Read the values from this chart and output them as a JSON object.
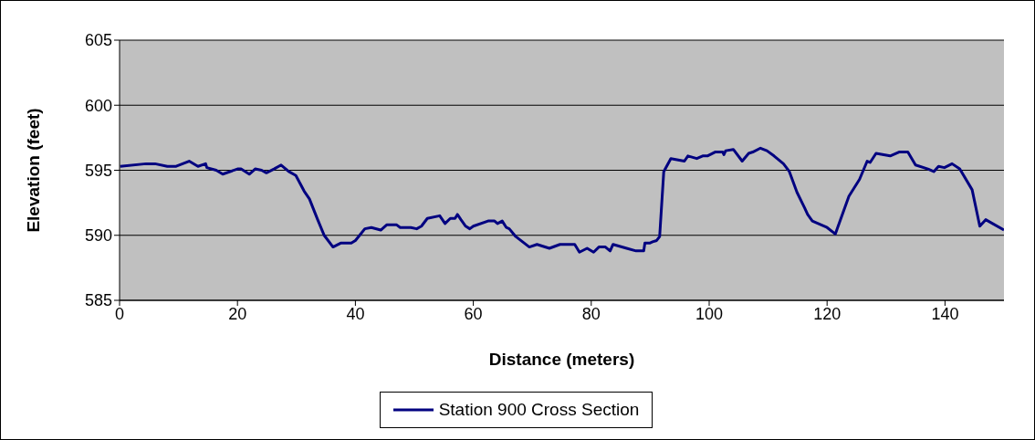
{
  "chart_data": {
    "type": "line",
    "xlabel": "Distance (meters)",
    "ylabel": "Elevation (feet)",
    "xlim": [
      0,
      150
    ],
    "xticks": [
      0,
      20,
      40,
      60,
      80,
      100,
      120,
      140
    ],
    "ylim": [
      585,
      605
    ],
    "yticks": [
      585,
      590,
      595,
      600,
      605
    ],
    "grid": "y",
    "legend": "bottom",
    "marker": "none",
    "line_style": "solid",
    "series": [
      {
        "name": "Station 900 Cross Section",
        "color": "#000080",
        "x": [
          0.1,
          4.5,
          6,
          8.1,
          9.6,
          11.8,
          13.3,
          14.6,
          14.8,
          16.4,
          17.5,
          20,
          20.6,
          22,
          23,
          24.1,
          24.9,
          26.2,
          27.4,
          28.7,
          29.9,
          31.3,
          32.2,
          33.6,
          34.7,
          36.2,
          37.5,
          39.3,
          40,
          41.6,
          42.7,
          44.3,
          45.3,
          47,
          47.6,
          49.4,
          50.4,
          51.2,
          52.2,
          54.3,
          55.2,
          56.1,
          56.9,
          57.3,
          57.9,
          58.7,
          59.4,
          60,
          62.5,
          63.6,
          64.1,
          64.9,
          65.6,
          66.1,
          67.2,
          69.5,
          70.8,
          72.9,
          74.7,
          77.2,
          78,
          79.3,
          80.4,
          81.3,
          82.4,
          83.2,
          83.7,
          86,
          87.6,
          88.9,
          89.1,
          89.9,
          90.4,
          91.1,
          91.6,
          92.3,
          93.5,
          95.8,
          96.4,
          97.9,
          98.9,
          99.7,
          101,
          102.3,
          102.5,
          102.8,
          104.1,
          105.6,
          106.7,
          107.4,
          108.7,
          109.8,
          111,
          112.6,
          113.6,
          114.9,
          116.2,
          116.7,
          117.5,
          120,
          121.4,
          123.7,
          125.5,
          126.8,
          127.3,
          128.3,
          130.7,
          132.2,
          133.7,
          135,
          137.1,
          138.1,
          138.9,
          139.9,
          141.2,
          142.5,
          144.6,
          145.9,
          146.9,
          150
        ],
        "values": [
          595.3,
          595.5,
          595.5,
          595.3,
          595.3,
          595.7,
          595.3,
          595.5,
          595.2,
          595.0,
          594.7,
          595.1,
          595.1,
          594.7,
          595.1,
          595.0,
          594.8,
          595.1,
          595.4,
          594.9,
          594.6,
          593.4,
          592.8,
          591.2,
          590.0,
          589.1,
          589.4,
          589.4,
          589.6,
          590.5,
          590.6,
          590.4,
          590.8,
          590.8,
          590.6,
          590.6,
          590.5,
          590.7,
          591.3,
          591.5,
          590.9,
          591.3,
          591.3,
          591.6,
          591.2,
          590.7,
          590.5,
          590.7,
          591.1,
          591.1,
          590.9,
          591.1,
          590.6,
          590.5,
          589.9,
          589.1,
          589.3,
          589.0,
          589.3,
          589.3,
          588.7,
          589.0,
          588.7,
          589.1,
          589.1,
          588.8,
          589.3,
          589.0,
          588.8,
          588.8,
          589.4,
          589.4,
          589.5,
          589.6,
          589.9,
          594.9,
          595.9,
          595.7,
          596.1,
          595.9,
          596.1,
          596.1,
          596.4,
          596.4,
          596.2,
          596.5,
          596.6,
          595.7,
          596.3,
          596.4,
          596.7,
          596.5,
          596.1,
          595.5,
          594.9,
          593.3,
          592.1,
          591.6,
          591.1,
          590.6,
          590.1,
          593.0,
          594.3,
          595.7,
          595.6,
          596.3,
          596.1,
          596.4,
          596.4,
          595.4,
          595.1,
          594.9,
          595.3,
          595.2,
          595.5,
          595.1,
          593.5,
          590.7,
          591.2,
          590.4
        ]
      }
    ]
  }
}
